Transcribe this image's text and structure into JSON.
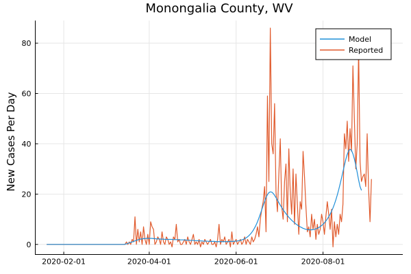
{
  "chart_data": {
    "type": "line",
    "title": "Monongalia County, WV",
    "xlabel": "",
    "ylabel": "New Cases Per Day",
    "x_start": "2020-01-20",
    "x_end": "2020-09-15",
    "xlim": [
      "2020-01-12",
      "2020-09-26"
    ],
    "ylim": [
      -4,
      89
    ],
    "xticks": [
      "2020-02-01",
      "2020-04-01",
      "2020-06-01",
      "2020-08-01"
    ],
    "yticks": [
      0,
      20,
      40,
      60,
      80
    ],
    "grid": true,
    "legend": "top-right",
    "series": [
      {
        "name": "Model",
        "color": "#1f8fd9",
        "values": [
          0,
          0,
          0,
          0,
          0,
          0,
          0,
          0,
          0,
          0,
          0,
          0,
          0,
          0,
          0,
          0,
          0,
          0,
          0,
          0,
          0,
          0,
          0,
          0,
          0,
          0,
          0,
          0,
          0,
          0,
          0,
          0,
          0,
          0,
          0,
          0,
          0,
          0,
          0,
          0,
          0,
          0,
          0,
          0,
          0,
          0,
          0,
          0,
          0,
          0,
          0,
          0,
          0,
          0,
          0,
          0.1,
          0.2,
          0.4,
          0.6,
          0.8,
          1.0,
          1.2,
          1.4,
          1.6,
          1.8,
          2.0,
          2.1,
          2.2,
          2.3,
          2.3,
          2.4,
          2.4,
          2.4,
          2.4,
          2.4,
          2.3,
          2.3,
          2.2,
          2.2,
          2.2,
          2.1,
          2.1,
          2.1,
          2.0,
          2.0,
          2.0,
          2.0,
          2.0,
          2.0,
          1.9,
          1.9,
          1.9,
          1.9,
          1.9,
          1.8,
          1.8,
          1.8,
          1.8,
          1.7,
          1.7,
          1.7,
          1.6,
          1.6,
          1.6,
          1.5,
          1.5,
          1.5,
          1.4,
          1.4,
          1.4,
          1.3,
          1.3,
          1.3,
          1.3,
          1.2,
          1.2,
          1.2,
          1.2,
          1.2,
          1.1,
          1.1,
          1.1,
          1.1,
          1.1,
          1.1,
          1.1,
          1.1,
          1.1,
          1.1,
          1.2,
          1.2,
          1.2,
          1.3,
          1.3,
          1.4,
          1.5,
          1.6,
          1.8,
          2.0,
          2.3,
          2.6,
          3.0,
          3.5,
          4.1,
          4.8,
          5.6,
          6.6,
          7.7,
          9.0,
          10.5,
          12.1,
          13.8,
          15.5,
          17.1,
          18.6,
          19.8,
          20.6,
          20.9,
          20.8,
          20.3,
          19.5,
          18.6,
          17.6,
          16.6,
          15.6,
          14.7,
          13.8,
          13.0,
          12.2,
          11.5,
          10.8,
          10.2,
          9.6,
          9.1,
          8.6,
          8.1,
          7.7,
          7.3,
          7.0,
          6.7,
          6.4,
          6.2,
          6.0,
          5.9,
          5.8,
          5.8,
          5.8,
          5.9,
          6.0,
          6.2,
          6.4,
          6.7,
          7.1,
          7.5,
          8.0,
          8.6,
          9.3,
          10.1,
          11.0,
          12.0,
          13.2,
          14.5,
          16.0,
          17.7,
          19.6,
          21.7,
          24.0,
          26.4,
          28.9,
          31.4,
          33.8,
          35.8,
          37.2,
          37.8,
          37.4,
          36.0,
          34.0,
          31.5,
          28.6,
          25.6,
          23.0,
          21.5
        ]
      },
      {
        "name": "Reported",
        "color": "#e0592b",
        "values": [
          0,
          0,
          0,
          0,
          0,
          0,
          0,
          0,
          0,
          0,
          0,
          0,
          0,
          0,
          0,
          0,
          0,
          0,
          0,
          0,
          0,
          0,
          0,
          0,
          0,
          0,
          0,
          0,
          0,
          0,
          0,
          0,
          0,
          0,
          0,
          0,
          0,
          0,
          0,
          0,
          0,
          0,
          0,
          0,
          0,
          0,
          0,
          0,
          0,
          0,
          0,
          0,
          0,
          0,
          0,
          0,
          1,
          0,
          1,
          0,
          2,
          1,
          11,
          0,
          6,
          1,
          5,
          0,
          7,
          2,
          0,
          4,
          0,
          9,
          7,
          6,
          0,
          1,
          3,
          2,
          0,
          5,
          1,
          0,
          3,
          2,
          0,
          1,
          -1,
          3,
          2,
          8,
          1,
          2,
          0,
          0,
          1,
          2,
          0,
          3,
          1,
          0,
          2,
          4,
          0,
          1,
          0,
          2,
          -1,
          1,
          0,
          2,
          1,
          0,
          1,
          2,
          0,
          0,
          1,
          -1,
          2,
          8,
          0,
          2,
          1,
          3,
          0,
          1,
          2,
          -1,
          5,
          0,
          1,
          2,
          0,
          1,
          2,
          0,
          1,
          3,
          0,
          2,
          1,
          0,
          3,
          1,
          2,
          4,
          7,
          3,
          10,
          14,
          17,
          23,
          5,
          59,
          25,
          86,
          40,
          36,
          56,
          21,
          13,
          28,
          42,
          15,
          10,
          25,
          32,
          9,
          38,
          21,
          12,
          30,
          8,
          28,
          16,
          4,
          17,
          14,
          37,
          27,
          15,
          5,
          7,
          3,
          12,
          6,
          10,
          2,
          8,
          4,
          6,
          12,
          9,
          4,
          11,
          17,
          12,
          6,
          14,
          -1,
          9,
          3,
          8,
          4,
          12,
          9,
          16,
          44,
          38,
          49,
          33,
          46,
          37,
          71,
          50,
          30,
          40,
          78,
          33,
          25,
          27,
          28,
          23,
          44,
          22,
          9,
          26
        ]
      }
    ]
  }
}
